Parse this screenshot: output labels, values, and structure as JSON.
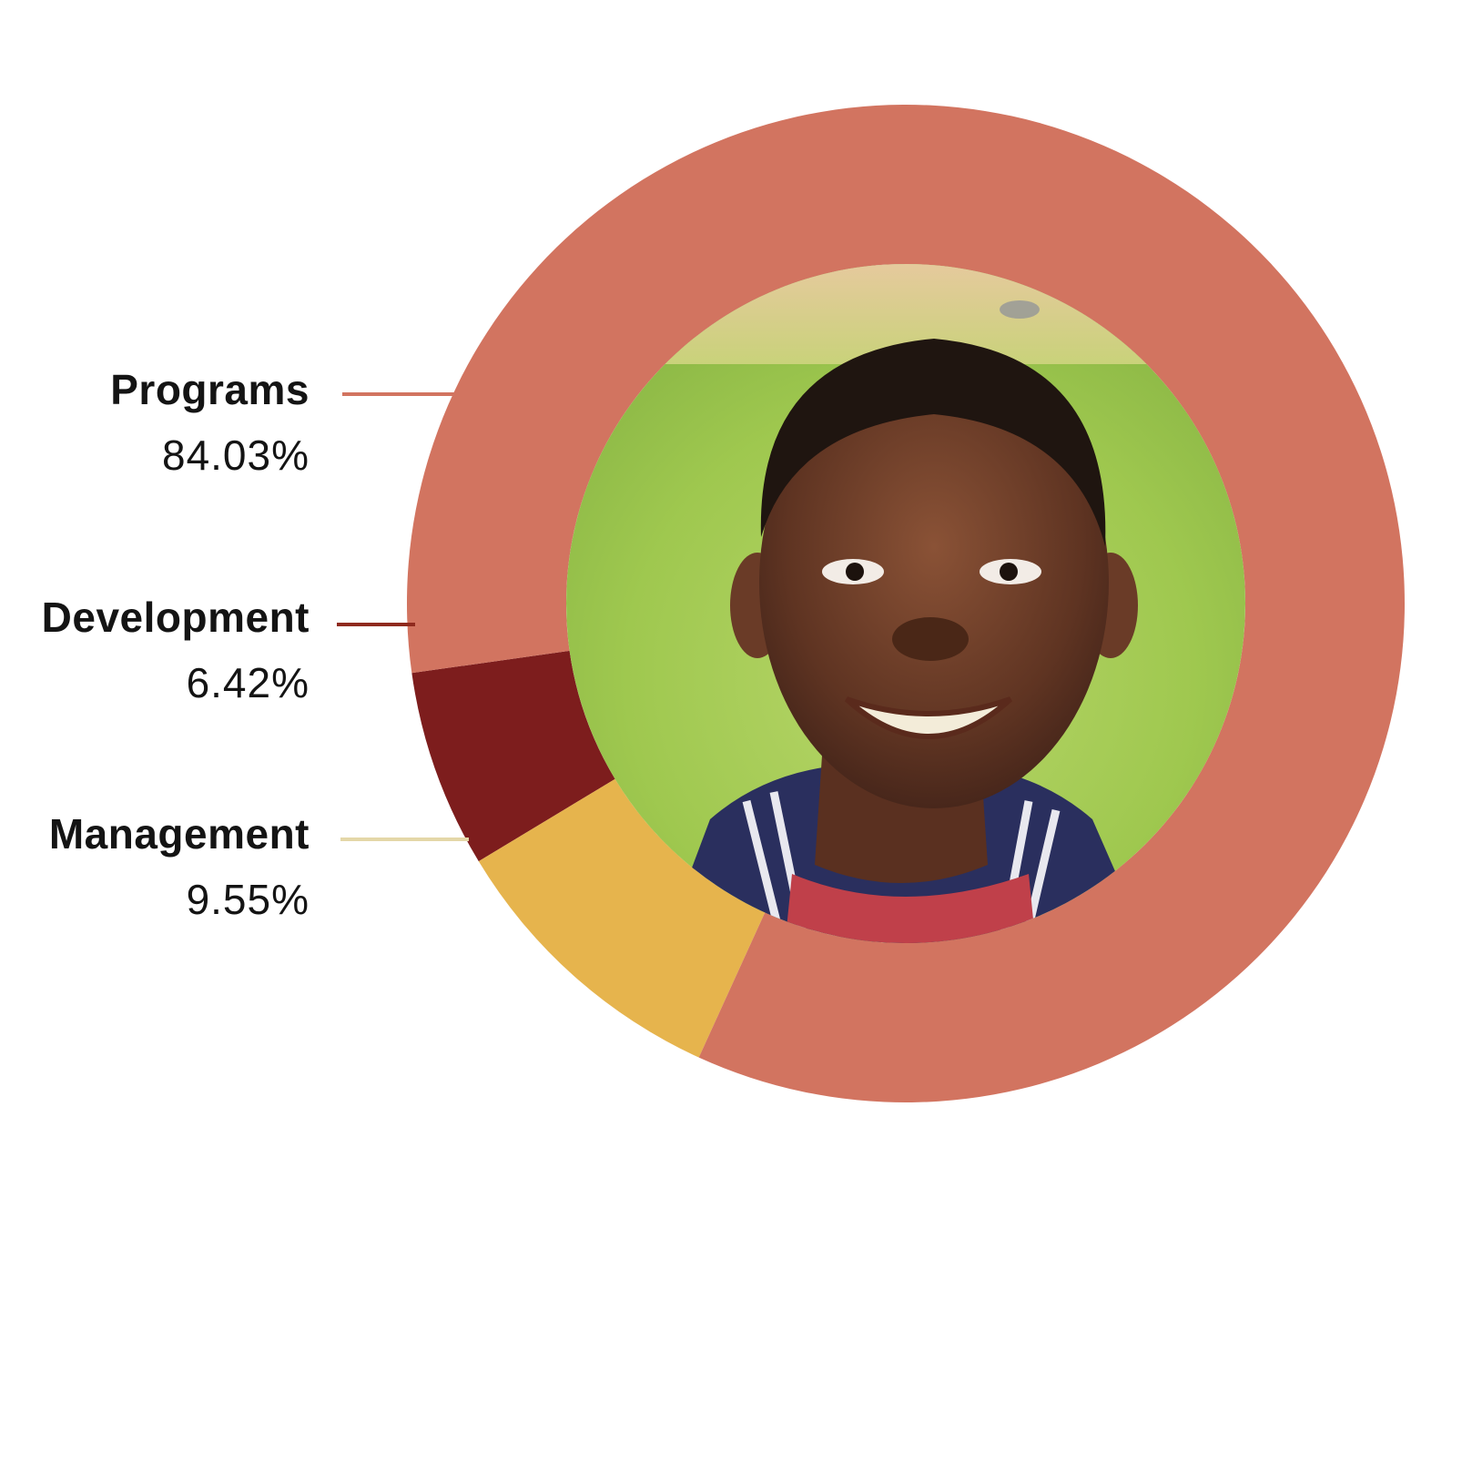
{
  "chart_data": {
    "type": "pie",
    "style": "donut",
    "categories": [
      "Programs",
      "Development",
      "Management"
    ],
    "values": [
      84.03,
      6.42,
      9.55
    ],
    "value_labels": [
      "84.03%",
      "6.42%",
      "9.55%"
    ],
    "unit": "%",
    "colors": [
      "#d27460",
      "#7d1d1d",
      "#e6b44d"
    ],
    "leader_colors": [
      "#d27460",
      "#8f2a1e",
      "#e4d7a8"
    ],
    "legend": "left",
    "center": "photo-child-icon"
  }
}
